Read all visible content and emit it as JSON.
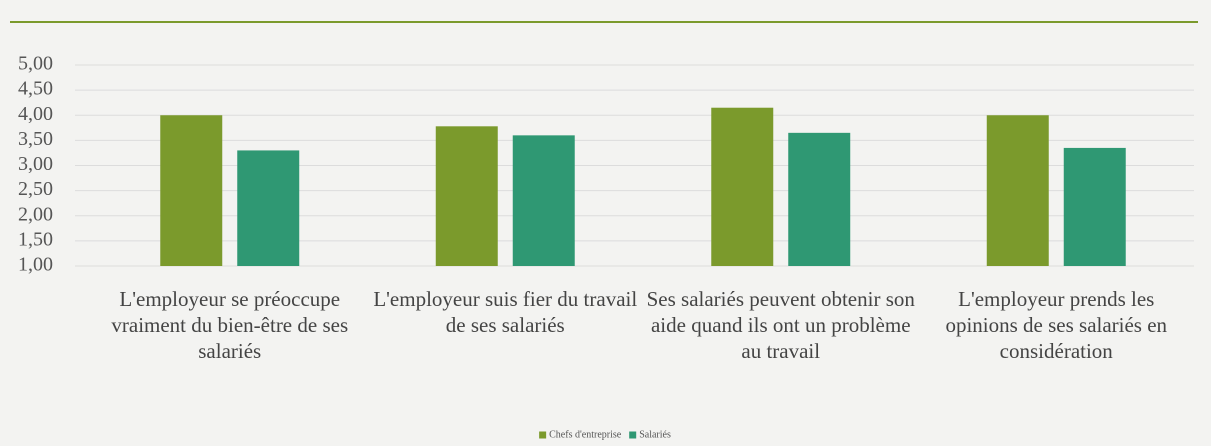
{
  "chart_data": {
    "type": "bar",
    "categories": [
      "L'employeur se préoccupe vraiment du bien-être de ses salariés",
      "L'employeur suis fier du travail de ses salariés",
      "Ses salariés peuvent obtenir son aide quand ils ont un problème au travail",
      "L'employeur prends les opinions de ses salariés en considération"
    ],
    "series": [
      {
        "name": "Chefs d'entreprise",
        "color": "#7b9a2c",
        "values": [
          4.0,
          3.78,
          4.15,
          4.0
        ]
      },
      {
        "name": "Salariés",
        "color": "#2f9873",
        "values": [
          3.3,
          3.6,
          3.65,
          3.35
        ]
      }
    ],
    "ylim": [
      1,
      5
    ],
    "yticks": [
      {
        "value": 1,
        "label": "1,00"
      },
      {
        "value": 1.5,
        "label": "1,50"
      },
      {
        "value": 2,
        "label": "2,00"
      },
      {
        "value": 2.5,
        "label": "2,50"
      },
      {
        "value": 3,
        "label": "3,00"
      },
      {
        "value": 3.5,
        "label": "3,50"
      },
      {
        "value": 4,
        "label": "4,00"
      },
      {
        "value": 4.5,
        "label": "4,50"
      },
      {
        "value": 5,
        "label": "5,00"
      }
    ],
    "grid": true,
    "legend": "bottom"
  }
}
